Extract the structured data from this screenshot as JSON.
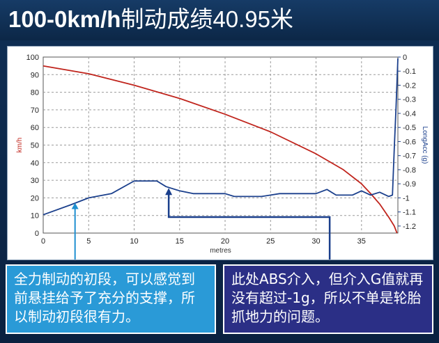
{
  "title": {
    "bold_part": "100-0km/h",
    "rest": "制动成绩40.95米"
  },
  "colors": {
    "speed": "#c0241c",
    "accel": "#1a3f8c",
    "arrow_left": "#1f8fd0",
    "arrow_right": "#1a3f8c",
    "callout_left_bg": "#2a9ad7",
    "callout_right_bg": "#2b2f86"
  },
  "callouts": {
    "left": "全力制动的初段，可以感觉到前悬挂给予了充分的支撑，所以制动初段很有力。",
    "right": "此处ABS介入，但介入G值就再没有超过-1g，所以不单是轮胎抓地力的问题。"
  },
  "chart_data": {
    "type": "line",
    "xlabel": "metres",
    "ylabel": "km/h",
    "y2label": "LongAcc (g)",
    "xlim": [
      0,
      39
    ],
    "ylim": [
      0,
      100
    ],
    "y2lim": [
      -1.25,
      0
    ],
    "x_ticks": [
      "0",
      "5",
      "10",
      "15",
      "20",
      "25",
      "30",
      "35"
    ],
    "y_ticks": [
      "0",
      "10",
      "20",
      "30",
      "40",
      "50",
      "60",
      "70",
      "80",
      "90",
      "100"
    ],
    "y2_ticks": [
      "0",
      "-0.1",
      "-0.2",
      "-0.3",
      "-0.4",
      "-0.5",
      "-0.6",
      "-0.7",
      "-0.8",
      "-0.9",
      "-1",
      "-1.1",
      "-1.2"
    ],
    "grid": true,
    "series": [
      {
        "name": "speed",
        "axis": "left",
        "x": [
          0,
          5,
          10,
          15,
          20,
          25,
          30,
          33,
          35,
          36,
          37,
          38,
          38.6,
          38.9
        ],
        "y": [
          95,
          90.5,
          84,
          76.5,
          67.5,
          57.5,
          45,
          36,
          28,
          22.5,
          16.5,
          9,
          4,
          0
        ]
      },
      {
        "name": "long_acc",
        "axis": "right",
        "x": [
          0,
          3,
          5,
          7.5,
          10,
          12.5,
          13.5,
          15,
          16.5,
          20,
          21,
          24,
          25,
          26,
          30,
          31.2,
          32.2,
          34,
          35,
          36,
          37,
          38,
          38.4,
          38.6,
          38.8,
          39
        ],
        "y": [
          -1.12,
          -1.05,
          -1,
          -0.97,
          -0.88,
          -0.88,
          -0.92,
          -0.95,
          -0.97,
          -0.97,
          -0.99,
          -0.99,
          -0.98,
          -0.97,
          -0.97,
          -0.94,
          -0.98,
          -0.98,
          -0.95,
          -0.98,
          -0.96,
          -0.99,
          -0.98,
          -0.65,
          -0.35,
          -0.01
        ]
      }
    ]
  }
}
